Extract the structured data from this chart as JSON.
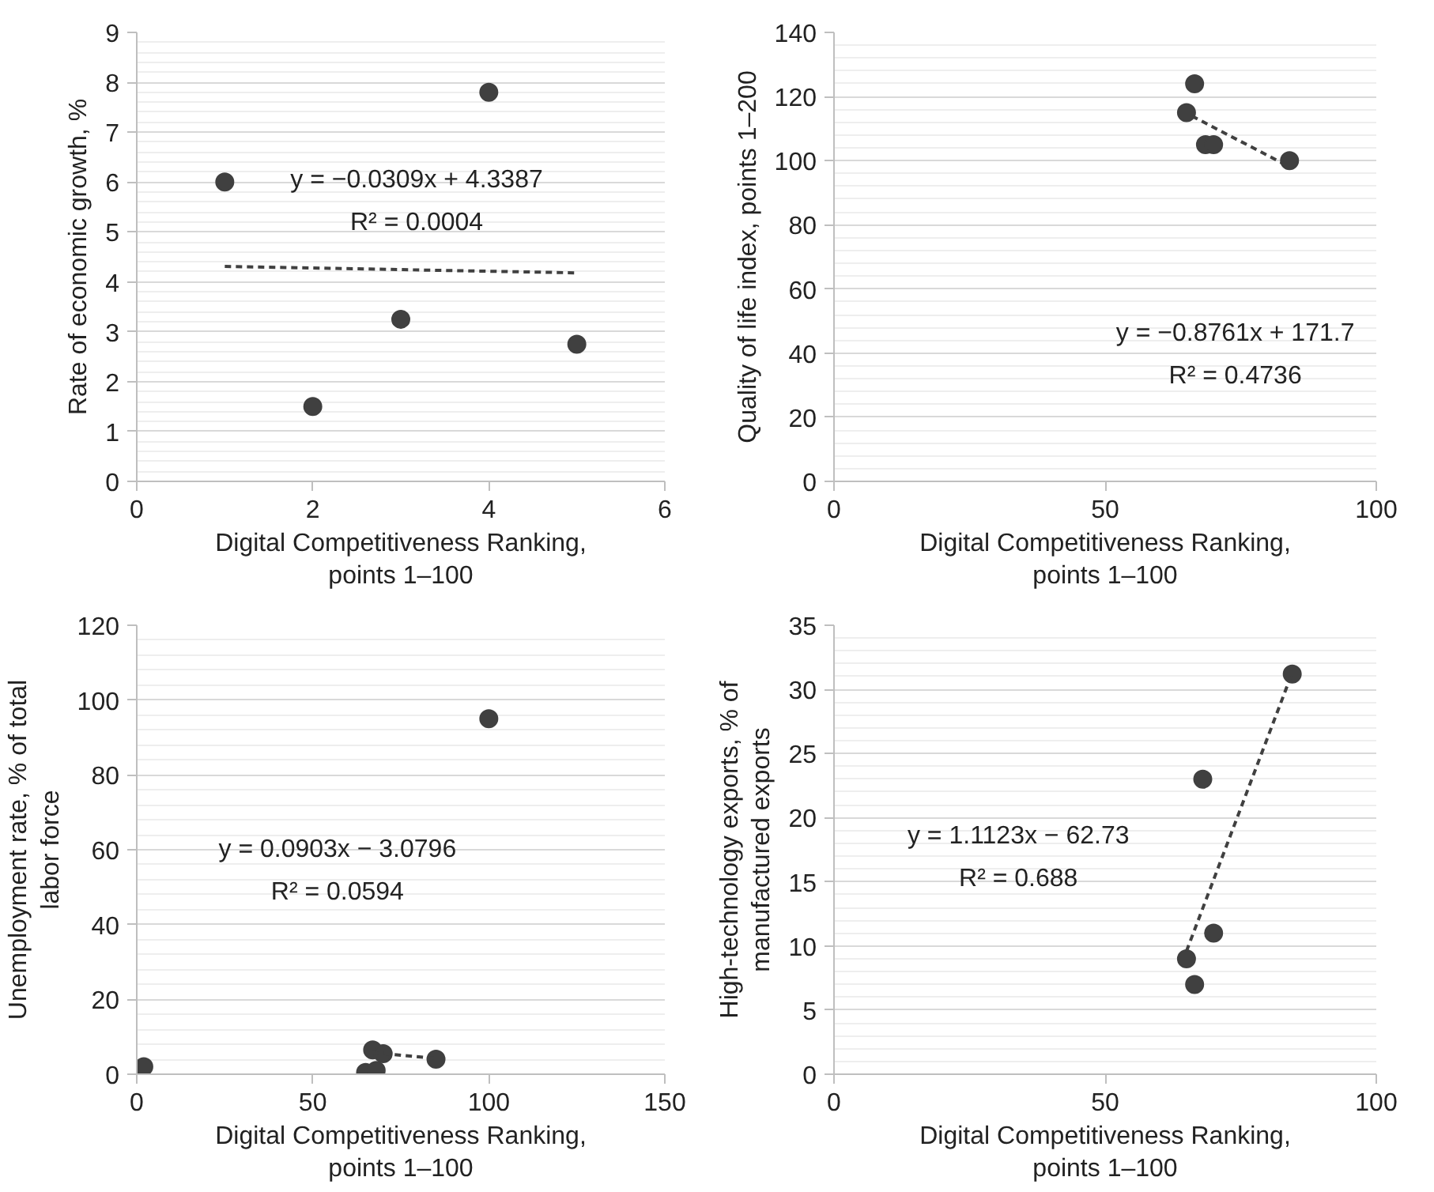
{
  "chart_data": [
    {
      "type": "scatter",
      "xlabel": "Digital Competitiveness Ranking,\npoints 1–100",
      "ylabel": "Rate of economic growth, %",
      "xlim": [
        0,
        6
      ],
      "xticks": [
        0,
        2,
        4,
        6
      ],
      "ylim": [
        0,
        9
      ],
      "yticks": [
        0,
        1,
        2,
        3,
        4,
        5,
        6,
        7,
        8,
        9
      ],
      "grid": "y",
      "marker": "circle",
      "series": [
        {
          "color": "#404040",
          "x": [
            1,
            2,
            3,
            4,
            5
          ],
          "values": [
            6.0,
            1.5,
            3.25,
            7.8,
            2.75
          ]
        },
        {
          "type": "line",
          "color": "#404040",
          "line_style": "dashed",
          "marker": "none",
          "x": [
            1,
            5
          ],
          "values": [
            4.31,
            4.18
          ]
        }
      ],
      "annotations": [
        "y = −0.0309x + 4.3387",
        "R² = 0.0004"
      ]
    },
    {
      "type": "scatter",
      "xlabel": "Digital Competitiveness Ranking,\npoints 1–100",
      "ylabel": "Quality of life index, points 1–200",
      "xlim": [
        0,
        100
      ],
      "xticks": [
        0,
        50,
        100
      ],
      "ylim": [
        0,
        140
      ],
      "yticks": [
        0,
        20,
        40,
        60,
        80,
        100,
        120,
        140
      ],
      "grid": "y",
      "marker": "circle",
      "series": [
        {
          "color": "#404040",
          "x": [
            65,
            66.5,
            68.5,
            70,
            84
          ],
          "values": [
            115,
            124,
            105,
            105,
            100
          ]
        },
        {
          "type": "line",
          "color": "#404040",
          "line_style": "dashed",
          "marker": "none",
          "x": [
            66,
            84
          ],
          "values": [
            113.9,
            98.1
          ]
        }
      ],
      "annotations": [
        "y = −0.8761x + 171.7",
        "R² = 0.4736"
      ]
    },
    {
      "type": "scatter",
      "xlabel": "Digital Competitiveness Ranking,\npoints 1–100",
      "ylabel": "Unemployment rate, % of total\nlabor force",
      "xlim": [
        0,
        150
      ],
      "xticks": [
        0,
        50,
        100,
        150
      ],
      "ylim": [
        0,
        120
      ],
      "yticks": [
        0,
        20,
        40,
        60,
        80,
        100,
        120
      ],
      "grid": "y",
      "marker": "circle",
      "series": [
        {
          "color": "#404040",
          "x": [
            2,
            65,
            67,
            68,
            70,
            85,
            100
          ],
          "values": [
            2,
            0.5,
            6.5,
            1,
            5.5,
            4,
            95
          ]
        },
        {
          "type": "line",
          "color": "#404040",
          "line_style": "dashed",
          "marker": "none",
          "x": [
            67,
            85
          ],
          "values": [
            5.8,
            4.2
          ]
        }
      ],
      "annotations": [
        "y = 0.0903x − 3.0796",
        "R² = 0.0594"
      ]
    },
    {
      "type": "scatter",
      "xlabel": "Digital Competitiveness Ranking,\npoints 1–100",
      "ylabel": "High-technology exports, % of\nmanufactured exports",
      "xlim": [
        0,
        100
      ],
      "xticks": [
        0,
        50,
        100
      ],
      "ylim": [
        0,
        35
      ],
      "yticks": [
        0,
        5,
        10,
        15,
        20,
        25,
        30,
        35
      ],
      "grid": "y",
      "marker": "circle",
      "series": [
        {
          "color": "#404040",
          "x": [
            65,
            66.5,
            68,
            70,
            84.5
          ],
          "values": [
            9,
            7,
            23,
            11,
            31.2
          ]
        },
        {
          "type": "line",
          "color": "#404040",
          "line_style": "dashed",
          "marker": "none",
          "x": [
            65,
            84.5
          ],
          "values": [
            9.6,
            31.3
          ]
        }
      ],
      "annotations": [
        "y = 1.1123x − 62.73",
        "R² = 0.688"
      ]
    }
  ]
}
